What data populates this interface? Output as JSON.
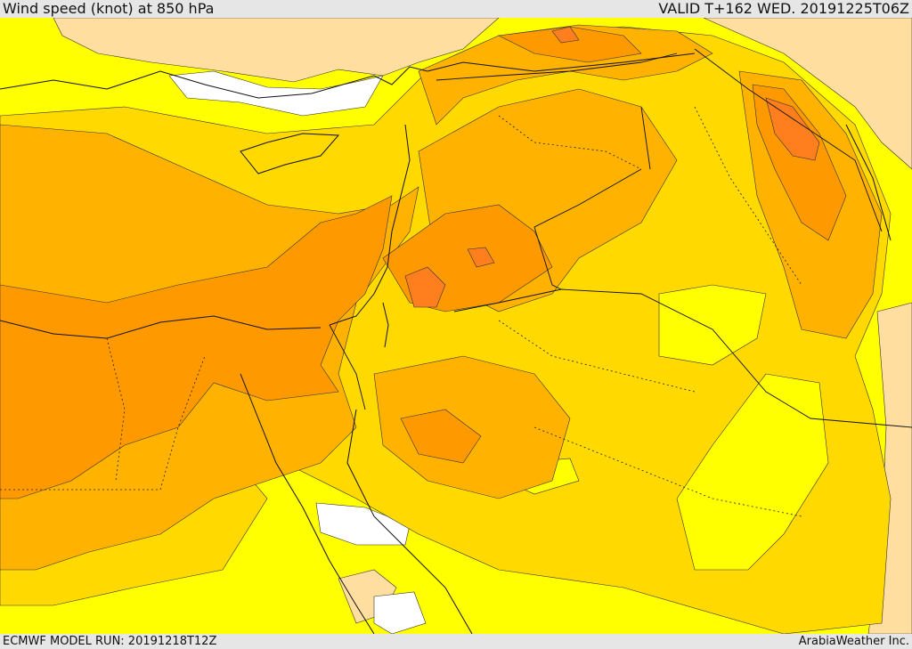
{
  "header": {
    "title": "Wind speed (knot) at 850 hPa",
    "valid": "VALID T+162 WED. 20191225T06Z"
  },
  "footer": {
    "model_run": "ECMWF MODEL RUN: 20191218T12Z",
    "credit": "ArabiaWeather Inc."
  },
  "colors": {
    "calm": "#ffffff",
    "light": "#ffdea0",
    "band1": "#ffff00",
    "band2": "#ffd900",
    "band3": "#ffb300",
    "band4": "#ff9900",
    "band5": "#ff7f1f"
  }
}
